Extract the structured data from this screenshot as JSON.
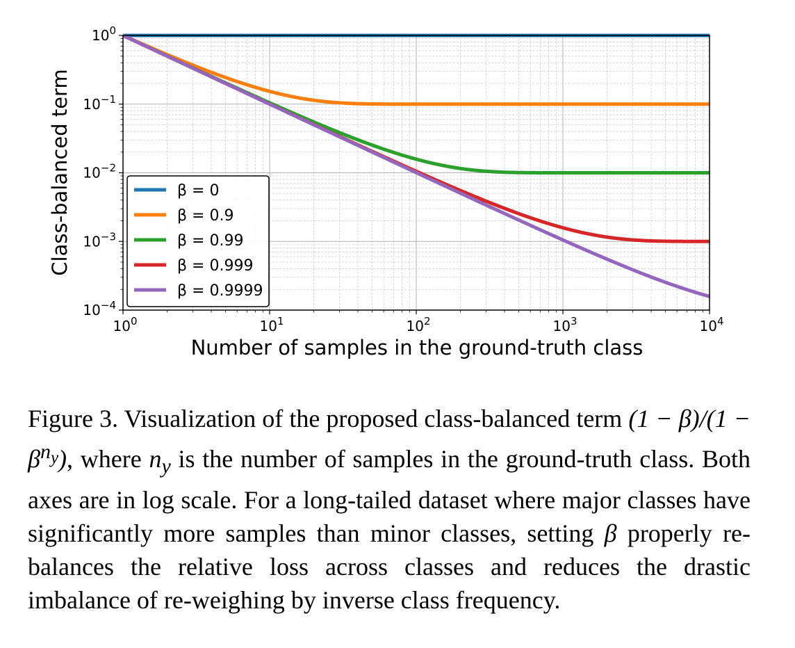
{
  "chart_data": {
    "type": "line",
    "xscale": "log",
    "yscale": "log",
    "xlim": [
      1,
      10000
    ],
    "ylim": [
      0.0001,
      1
    ],
    "xlabel": "Number of samples in the ground-truth class",
    "ylabel": "Class-balanced term",
    "xticks": [
      {
        "value": 1,
        "base": "10",
        "exp": "0"
      },
      {
        "value": 10,
        "base": "10",
        "exp": "1"
      },
      {
        "value": 100,
        "base": "10",
        "exp": "2"
      },
      {
        "value": 1000,
        "base": "10",
        "exp": "3"
      },
      {
        "value": 10000,
        "base": "10",
        "exp": "4"
      }
    ],
    "yticks": [
      {
        "value": 1,
        "base": "10",
        "exp": "0"
      },
      {
        "value": 0.1,
        "base": "10",
        "exp": "−1"
      },
      {
        "value": 0.01,
        "base": "10",
        "exp": "−2"
      },
      {
        "value": 0.001,
        "base": "10",
        "exp": "−3"
      },
      {
        "value": 0.0001,
        "base": "10",
        "exp": "−4"
      }
    ],
    "grid": true,
    "minor_grid": true,
    "legend_position": "lower-left",
    "series": [
      {
        "name": "β = 0",
        "beta": 0,
        "color": "#1f77b4",
        "x": [
          1,
          10,
          100,
          1000,
          10000
        ],
        "y": [
          1,
          1,
          1,
          1,
          1
        ]
      },
      {
        "name": "β = 0.9",
        "beta": 0.9,
        "color": "#ff7f0e",
        "x": [
          1,
          3,
          10,
          30,
          100,
          1000,
          10000
        ],
        "y": [
          1,
          0.369,
          0.154,
          0.104,
          0.1,
          0.1,
          0.1
        ]
      },
      {
        "name": "β = 0.99",
        "beta": 0.99,
        "color": "#2ca02c",
        "x": [
          1,
          10,
          30,
          100,
          300,
          1000,
          10000
        ],
        "y": [
          1,
          0.1046,
          0.0385,
          0.0158,
          0.0105,
          0.01,
          0.01
        ]
      },
      {
        "name": "β = 0.999",
        "beta": 0.999,
        "color": "#d62728",
        "x": [
          1,
          10,
          100,
          300,
          1000,
          3000,
          10000
        ],
        "y": [
          1,
          0.1005,
          0.01051,
          0.00386,
          0.00158,
          0.00105,
          0.001
        ]
      },
      {
        "name": "β = 0.9999",
        "beta": 0.9999,
        "color": "#9467bd",
        "x": [
          1,
          10,
          100,
          1000,
          3000,
          10000
        ],
        "y": [
          1,
          0.1,
          0.01005,
          0.00105,
          0.000385,
          0.000158
        ]
      }
    ]
  },
  "caption": {
    "prefix": "Figure 3. Visualization of the proposed class-balanced term ",
    "formula_num": "(1 − β)",
    "formula_sep": "/",
    "formula_den_open": "(1 − β",
    "formula_exp": "n",
    "formula_exp_sub": "y",
    "formula_den_close": ")",
    "middle_1": ", where ",
    "var_n": "n",
    "var_n_sub": "y",
    "middle_2": " is the number of samples in the ground-truth class. Both axes are in log scale. For a long-tailed dataset where major classes have significantly more samples than minor classes, setting ",
    "var_beta": "β",
    "suffix": " properly re-balances the relative loss across classes and reduces the drastic imbalance of re-weighing by inverse class frequency."
  }
}
